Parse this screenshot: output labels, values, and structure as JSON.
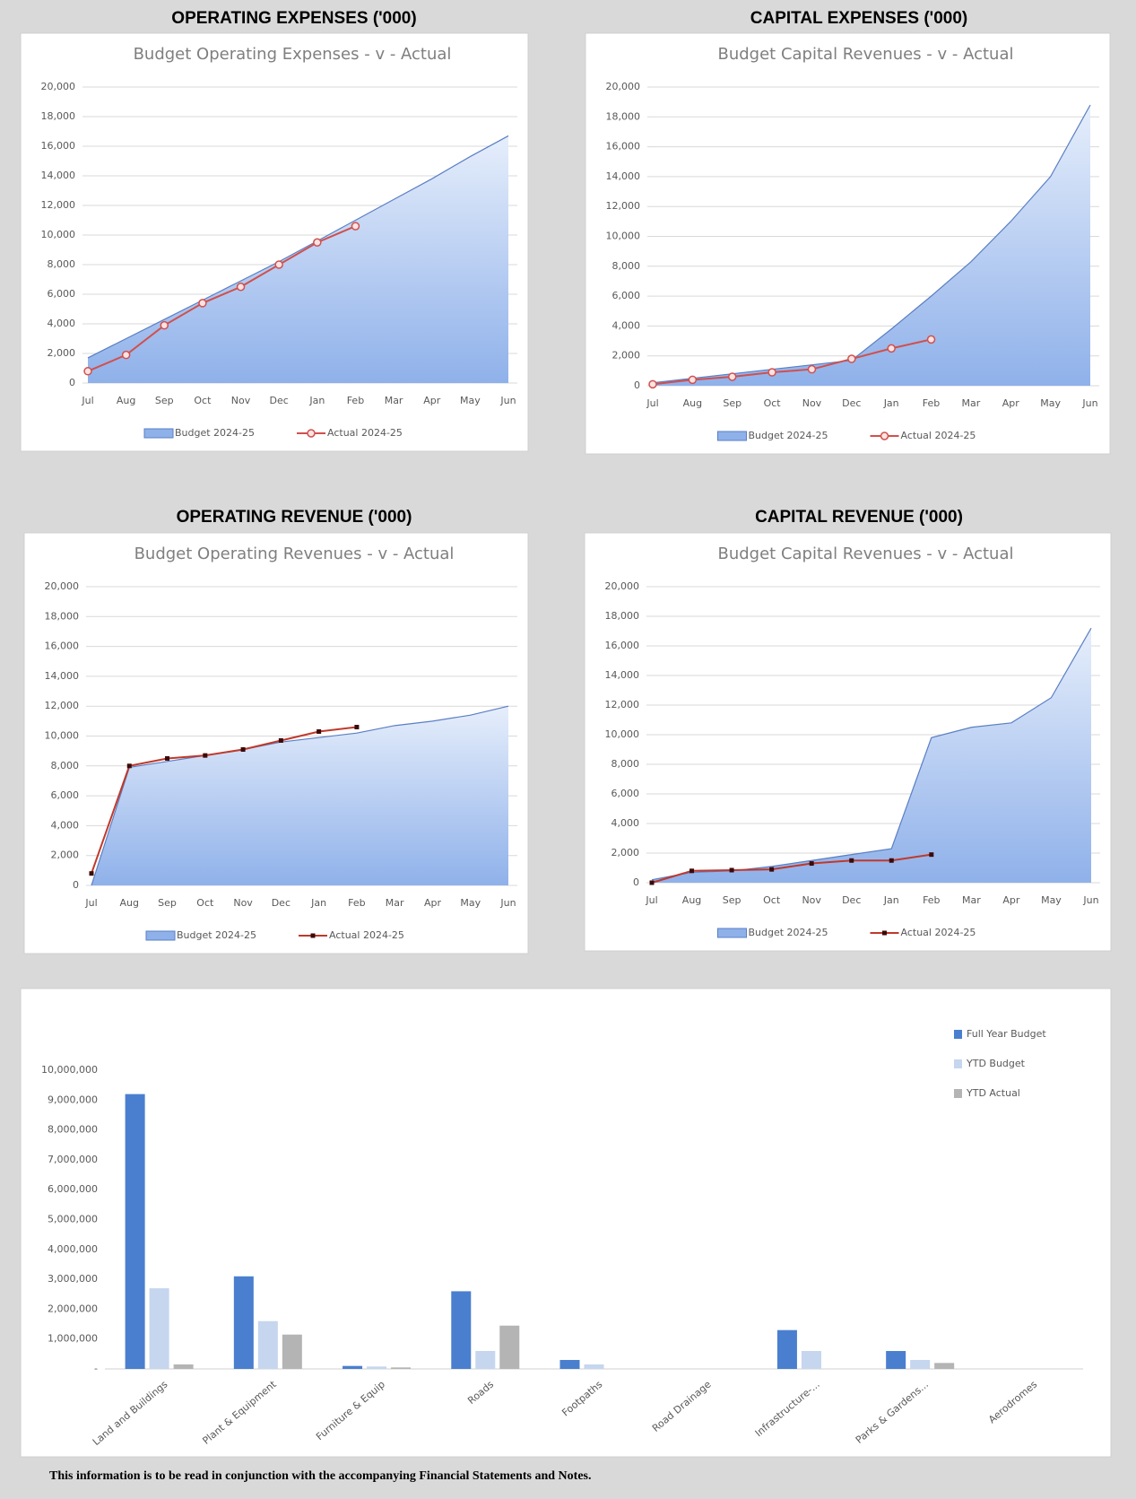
{
  "headings": [
    "OPERATING EXPENSES ('000)",
    "CAPITAL EXPENSES  ('000)",
    "OPERATING REVENUE  ('000)",
    "CAPITAL REVENUE  ('000)"
  ],
  "footnote": "This information is to be read in conjunction with the accompanying Financial Statements and Notes.",
  "chart_data": [
    {
      "type": "line",
      "title": "Budget Operating Expenses - v - Actual",
      "categories": [
        "Jul",
        "Aug",
        "Sep",
        "Oct",
        "Nov",
        "Dec",
        "Jan",
        "Feb",
        "Mar",
        "Apr",
        "May",
        "Jun"
      ],
      "series": [
        {
          "name": "Budget 2024-25",
          "kind": "area",
          "color": "#8fb1ea",
          "values": [
            1700,
            3000,
            4300,
            5600,
            6900,
            8200,
            9600,
            11000,
            12400,
            13800,
            15300,
            16700
          ]
        },
        {
          "name": "Actual 2024-25",
          "kind": "line",
          "marker": "circle",
          "color": "#d0504d",
          "values": [
            800,
            1900,
            3900,
            5400,
            6500,
            8000,
            9500,
            10600,
            null,
            null,
            null,
            null
          ]
        }
      ],
      "ylim": [
        0,
        20000
      ],
      "yticks": [
        0,
        {
          "value": 2000,
          "label": "2,000"
        },
        {
          "value": 4000,
          "label": "4,000"
        },
        {
          "value": 6000,
          "label": "6,000"
        },
        {
          "value": 8000,
          "label": "8,000"
        },
        {
          "value": 10000,
          "label": "10,000"
        },
        {
          "value": 12000,
          "label": "12,000"
        },
        {
          "value": 14000,
          "label": "14,000"
        },
        {
          "value": 16000,
          "label": "16,000"
        },
        {
          "value": 18000,
          "label": "18,000"
        },
        {
          "value": 20000,
          "label": "20,000"
        }
      ],
      "grid": true,
      "legend": "bottom"
    },
    {
      "type": "line",
      "title": "Budget Capital Revenues - v - Actual",
      "categories": [
        "Jul",
        "Aug",
        "Sep",
        "Oct",
        "Nov",
        "Dec",
        "Jan",
        "Feb",
        "Mar",
        "Apr",
        "May",
        "Jun"
      ],
      "series": [
        {
          "name": "Budget 2024-25",
          "kind": "area",
          "color": "#8fb1ea",
          "values": [
            200,
            500,
            800,
            1100,
            1400,
            1700,
            3800,
            6000,
            8300,
            11000,
            14000,
            18800
          ]
        },
        {
          "name": "Actual 2024-25",
          "kind": "line",
          "marker": "circle",
          "color": "#d0504d",
          "values": [
            100,
            400,
            600,
            900,
            1100,
            1800,
            2500,
            3100,
            null,
            null,
            null,
            null
          ]
        }
      ],
      "ylim": [
        0,
        20000
      ],
      "yticks": [
        0,
        {
          "value": 2000,
          "label": "2,000"
        },
        {
          "value": 4000,
          "label": "4,000"
        },
        {
          "value": 6000,
          "label": "6,000"
        },
        {
          "value": 8000,
          "label": "8,000"
        },
        {
          "value": 10000,
          "label": "10,000"
        },
        {
          "value": 12000,
          "label": "12,000"
        },
        {
          "value": 14000,
          "label": "14,000"
        },
        {
          "value": 16000,
          "label": "16,000"
        },
        {
          "value": 18000,
          "label": "18,000"
        },
        {
          "value": 20000,
          "label": "20,000"
        }
      ],
      "grid": true,
      "legend": "bottom"
    },
    {
      "type": "line",
      "title": "Budget Operating Revenues - v - Actual",
      "categories": [
        "Jul",
        "Aug",
        "Sep",
        "Oct",
        "Nov",
        "Dec",
        "Jan",
        "Feb",
        "Mar",
        "Apr",
        "May",
        "Jun"
      ],
      "series": [
        {
          "name": "Budget 2024-25",
          "kind": "area",
          "color": "#8fb1ea",
          "values": [
            0,
            7900,
            8300,
            8700,
            9100,
            9600,
            9900,
            10200,
            10700,
            11000,
            11400,
            12000
          ]
        },
        {
          "name": "Actual 2024-25",
          "kind": "line",
          "marker": "square",
          "color": "#c0392b",
          "values": [
            800,
            8000,
            8500,
            8700,
            9100,
            9700,
            10300,
            10600,
            null,
            null,
            null,
            null
          ]
        }
      ],
      "ylim": [
        0,
        20000
      ],
      "yticks": [
        0,
        {
          "value": 2000,
          "label": "2,000"
        },
        {
          "value": 4000,
          "label": "4,000"
        },
        {
          "value": 6000,
          "label": "6,000"
        },
        {
          "value": 8000,
          "label": "8,000"
        },
        {
          "value": 10000,
          "label": "10,000"
        },
        {
          "value": 12000,
          "label": "12,000"
        },
        {
          "value": 14000,
          "label": "14,000"
        },
        {
          "value": 16000,
          "label": "16,000"
        },
        {
          "value": 18000,
          "label": "18,000"
        },
        {
          "value": 20000,
          "label": "20,000"
        }
      ],
      "grid": true,
      "legend": "bottom"
    },
    {
      "type": "line",
      "title": "Budget Capital Revenues - v - Actual",
      "categories": [
        "Jul",
        "Aug",
        "Sep",
        "Oct",
        "Nov",
        "Dec",
        "Jan",
        "Feb",
        "Mar",
        "Apr",
        "May",
        "Jun"
      ],
      "series": [
        {
          "name": "Budget 2024-25",
          "kind": "area",
          "color": "#8fb1ea",
          "values": [
            200,
            700,
            800,
            1100,
            1500,
            1900,
            2300,
            9800,
            10500,
            10800,
            12500,
            17200
          ]
        },
        {
          "name": "Actual 2024-25",
          "kind": "line",
          "marker": "square",
          "color": "#c0392b",
          "values": [
            0,
            800,
            850,
            900,
            1300,
            1500,
            1500,
            1900,
            null,
            null,
            null,
            null
          ]
        }
      ],
      "ylim": [
        0,
        20000
      ],
      "yticks": [
        0,
        {
          "value": 2000,
          "label": "2,000"
        },
        {
          "value": 4000,
          "label": "4,000"
        },
        {
          "value": 6000,
          "label": "6,000"
        },
        {
          "value": 8000,
          "label": "8,000"
        },
        {
          "value": 10000,
          "label": "10,000"
        },
        {
          "value": 12000,
          "label": "12,000"
        },
        {
          "value": 14000,
          "label": "14,000"
        },
        {
          "value": 16000,
          "label": "16,000"
        },
        {
          "value": 18000,
          "label": "18,000"
        },
        {
          "value": 20000,
          "label": "20,000"
        }
      ],
      "grid": true,
      "legend": "bottom"
    },
    {
      "type": "bar",
      "categories": [
        "Land and Buildings",
        "Plant & Equipment",
        "Furniture & Equip",
        "Roads",
        "Footpaths",
        "Road Drainage",
        "Infrastructure-...",
        "Parks & Gardens...",
        "Aerodromes"
      ],
      "series": [
        {
          "name": "Full Year Budget",
          "color": "#4a7fcf",
          "values": [
            9200000,
            3100000,
            100000,
            2600000,
            300000,
            0,
            1300000,
            600000,
            0
          ]
        },
        {
          "name": "YTD Budget",
          "color": "#c5d6ee",
          "values": [
            2700000,
            1600000,
            80000,
            600000,
            150000,
            0,
            600000,
            300000,
            0
          ]
        },
        {
          "name": "YTD Actual",
          "color": "#b4b4b4",
          "values": [
            150000,
            1150000,
            50000,
            1450000,
            0,
            0,
            0,
            200000,
            0
          ]
        }
      ],
      "ylim": [
        0,
        10000000
      ],
      "yticks": [
        {
          "value": 0,
          "label": "-"
        },
        {
          "value": 1000000,
          "label": "1,000,000"
        },
        {
          "value": 2000000,
          "label": "2,000,000"
        },
        {
          "value": 3000000,
          "label": "3,000,000"
        },
        {
          "value": 4000000,
          "label": "4,000,000"
        },
        {
          "value": 5000000,
          "label": "5,000,000"
        },
        {
          "value": 6000000,
          "label": "6,000,000"
        },
        {
          "value": 7000000,
          "label": "7,000,000"
        },
        {
          "value": 8000000,
          "label": "8,000,000"
        },
        {
          "value": 9000000,
          "label": "9,000,000"
        },
        {
          "value": 10000000,
          "label": "10,000,000"
        }
      ],
      "grid": false,
      "legend": "top-right"
    }
  ]
}
